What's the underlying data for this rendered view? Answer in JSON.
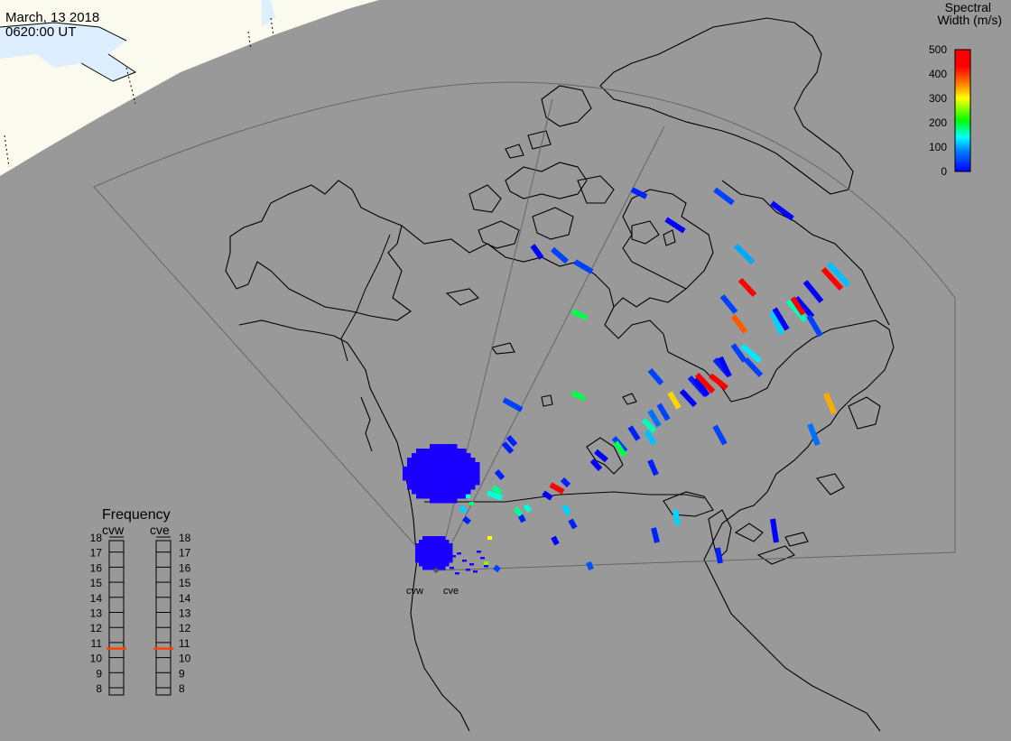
{
  "header": {
    "date": "March, 13 2018",
    "time": "0620:00 UT"
  },
  "colorbar": {
    "title_line1": "Spectral",
    "title_line2": "Width (m/s)",
    "ticks": [
      "500",
      "400",
      "300",
      "200",
      "100",
      "0"
    ],
    "min": 0,
    "max": 500
  },
  "frequency": {
    "title": "Frequency",
    "radars": [
      {
        "name": "cvw",
        "selected_mhz": 10.6
      },
      {
        "name": "cve",
        "selected_mhz": 10.6
      }
    ],
    "ticks": [
      "18",
      "17",
      "16",
      "15",
      "14",
      "13",
      "12",
      "11",
      "10",
      "9",
      "8"
    ],
    "marker_color": "#ff4400"
  },
  "stations": [
    {
      "name": "cvw"
    },
    {
      "name": "cve"
    }
  ],
  "colors": {
    "background": "#999999",
    "daylight": "#fafaee",
    "ocean_daylight": "#ddeeff"
  },
  "backscatter": [
    {
      "w": 20
    },
    {
      "w": 40
    },
    {
      "w": 0
    },
    {
      "w": 0
    },
    {
      "w": 100
    },
    {
      "w": 110
    },
    {
      "w": 450
    },
    {
      "w": 0
    },
    {
      "w": 0
    },
    {
      "w": 160
    },
    {
      "w": 120
    },
    {
      "w": 380
    },
    {
      "w": 0
    },
    {
      "w": 460
    },
    {
      "w": 40
    },
    {
      "w": 40
    },
    {
      "w": 470
    },
    {
      "w": 130
    },
    {
      "w": 40
    },
    {
      "w": 40
    },
    {
      "w": 320
    },
    {
      "w": 40
    },
    {
      "w": 0
    },
    {
      "w": 40
    },
    {
      "w": 70
    },
    {
      "w": 20
    },
    {
      "w": 0
    },
    {
      "w": 20
    },
    {
      "w": 190
    },
    {
      "w": 190
    },
    {
      "w": 40
    },
    {
      "w": 0
    },
    {
      "w": 40
    },
    {
      "w": 40
    },
    {
      "w": 0
    },
    {
      "w": 340
    },
    {
      "w": 470
    },
    {
      "w": 470
    },
    {
      "w": 40
    },
    {
      "w": 70
    },
    {
      "w": 160
    },
    {
      "w": 20
    },
    {
      "w": 40
    },
    {
      "w": 110
    },
    {
      "w": 0
    },
    {
      "w": 190
    },
    {
      "w": 0
    },
    {
      "w": 20
    },
    {
      "w": 20
    },
    {
      "w": 120
    },
    {
      "w": 20
    },
    {
      "w": 0
    },
    {
      "w": 480
    },
    {
      "w": 0
    },
    {
      "w": 50
    },
    {
      "w": 120
    },
    {
      "w": 20
    },
    {
      "w": 0
    },
    {
      "w": 20
    },
    {
      "w": 20
    },
    {
      "w": 20
    },
    {
      "w": 20
    },
    {
      "w": 170
    },
    {
      "w": 150
    },
    {
      "w": 150
    },
    {
      "w": 170
    },
    {
      "w": 20
    },
    {
      "w": 120
    },
    {
      "w": 20
    },
    {
      "w": 40
    }
  ]
}
